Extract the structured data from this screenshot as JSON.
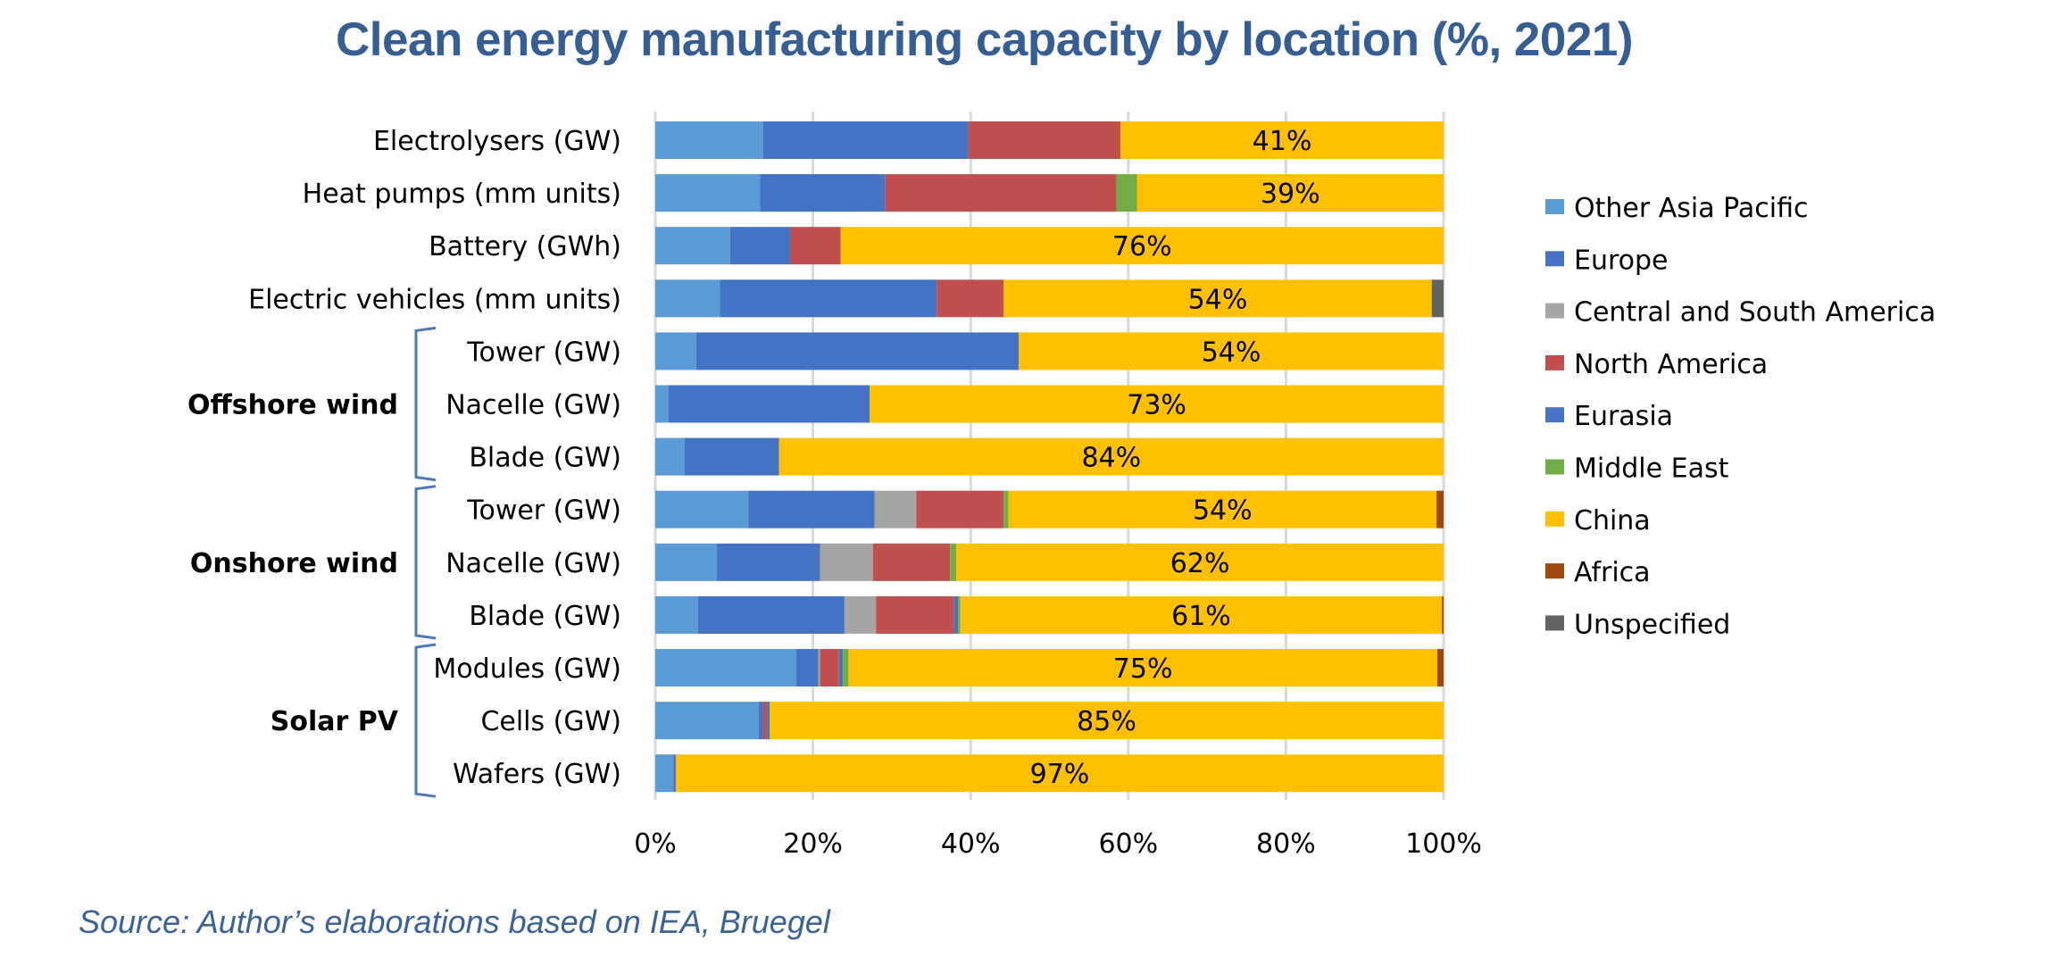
{
  "title": "Clean energy manufacturing capacity by location (%, 2021)",
  "source": "Source: Author’s elaborations based on IEA, Bruegel",
  "chart_data": {
    "type": "bar",
    "orientation": "horizontal",
    "stacked": "percent",
    "title": "Clean energy manufacturing capacity by location (%, 2021)",
    "xlabel": "",
    "ylabel": "",
    "xlim": [
      0,
      100
    ],
    "xticks": [
      "0%",
      "20%",
      "40%",
      "60%",
      "80%",
      "100%"
    ],
    "grid": true,
    "legend_position": "right",
    "categories": [
      "Electrolysers (GW)",
      "Heat pumps (mm units)",
      "Battery (GWh)",
      "Electric vehicles (mm units)",
      "Tower (GW)",
      "Nacelle (GW)",
      "Blade (GW)",
      "Tower (GW)",
      "Nacelle (GW)",
      "Blade (GW)",
      "Modules (GW)",
      "Cells (GW)",
      "Wafers (GW)"
    ],
    "groups": [
      {
        "label": "Offshore wind",
        "first": 4,
        "last": 6
      },
      {
        "label": "Onshore wind",
        "first": 7,
        "last": 9
      },
      {
        "label": "Solar PV",
        "first": 10,
        "last": 12
      }
    ],
    "series": [
      {
        "name": "Other Asia Pacific",
        "color": "#5b9bd5",
        "values": [
          13.7,
          13.3,
          9.5,
          8.2,
          5.2,
          1.7,
          3.7,
          11.8,
          7.8,
          5.4,
          17.9,
          13.1,
          2.3
        ]
      },
      {
        "name": "Europe",
        "color": "#4472c4",
        "values": [
          26.0,
          15.9,
          7.6,
          27.5,
          40.9,
          25.5,
          12.0,
          16.0,
          13.1,
          18.6,
          2.8,
          0.6,
          0.3
        ]
      },
      {
        "name": "Central and South America",
        "color": "#a5a5a5",
        "values": [
          0,
          0,
          0,
          0,
          0,
          0,
          0,
          5.3,
          6.7,
          4.0,
          0.2,
          0,
          0
        ]
      },
      {
        "name": "North America",
        "color": "#c0504d",
        "values": [
          19.3,
          29.3,
          6.4,
          8.5,
          0,
          0,
          0,
          11.1,
          9.8,
          9.9,
          2.4,
          0.5,
          0
        ]
      },
      {
        "name": "Eurasia",
        "color": "#4472c4",
        "values": [
          0,
          0,
          0,
          0,
          0,
          0,
          0,
          0,
          0,
          0.5,
          0.5,
          0.3,
          0
        ]
      },
      {
        "name": "Middle East",
        "color": "#70ad47",
        "values": [
          0,
          2.6,
          0,
          0,
          0,
          0,
          0,
          0.6,
          0.8,
          0.3,
          0.7,
          0,
          0
        ]
      },
      {
        "name": "China",
        "color": "#ffc000",
        "values": [
          41.0,
          38.9,
          76.5,
          54.3,
          53.9,
          72.8,
          84.3,
          54.3,
          61.8,
          61.1,
          74.7,
          85.5,
          97.4
        ]
      },
      {
        "name": "Africa",
        "color": "#9e480e",
        "values": [
          0,
          0,
          0,
          0,
          0,
          0,
          0,
          0.9,
          0,
          0.2,
          0.8,
          0,
          0
        ]
      },
      {
        "name": "Unspecified",
        "color": "#636363",
        "values": [
          0,
          0,
          0,
          1.5,
          0,
          0,
          0,
          0,
          0,
          0,
          0,
          0,
          0
        ]
      }
    ],
    "data_labels": {
      "series": "China",
      "labels": [
        "41%",
        "39%",
        "76%",
        "54%",
        "54%",
        "73%",
        "84%",
        "54%",
        "62%",
        "61%",
        "75%",
        "85%",
        "97%"
      ]
    }
  },
  "colors": {
    "title": "#355f94",
    "source": "#3b6296",
    "bracket": "#4a7ab8",
    "grid": "#d9d9d9"
  }
}
